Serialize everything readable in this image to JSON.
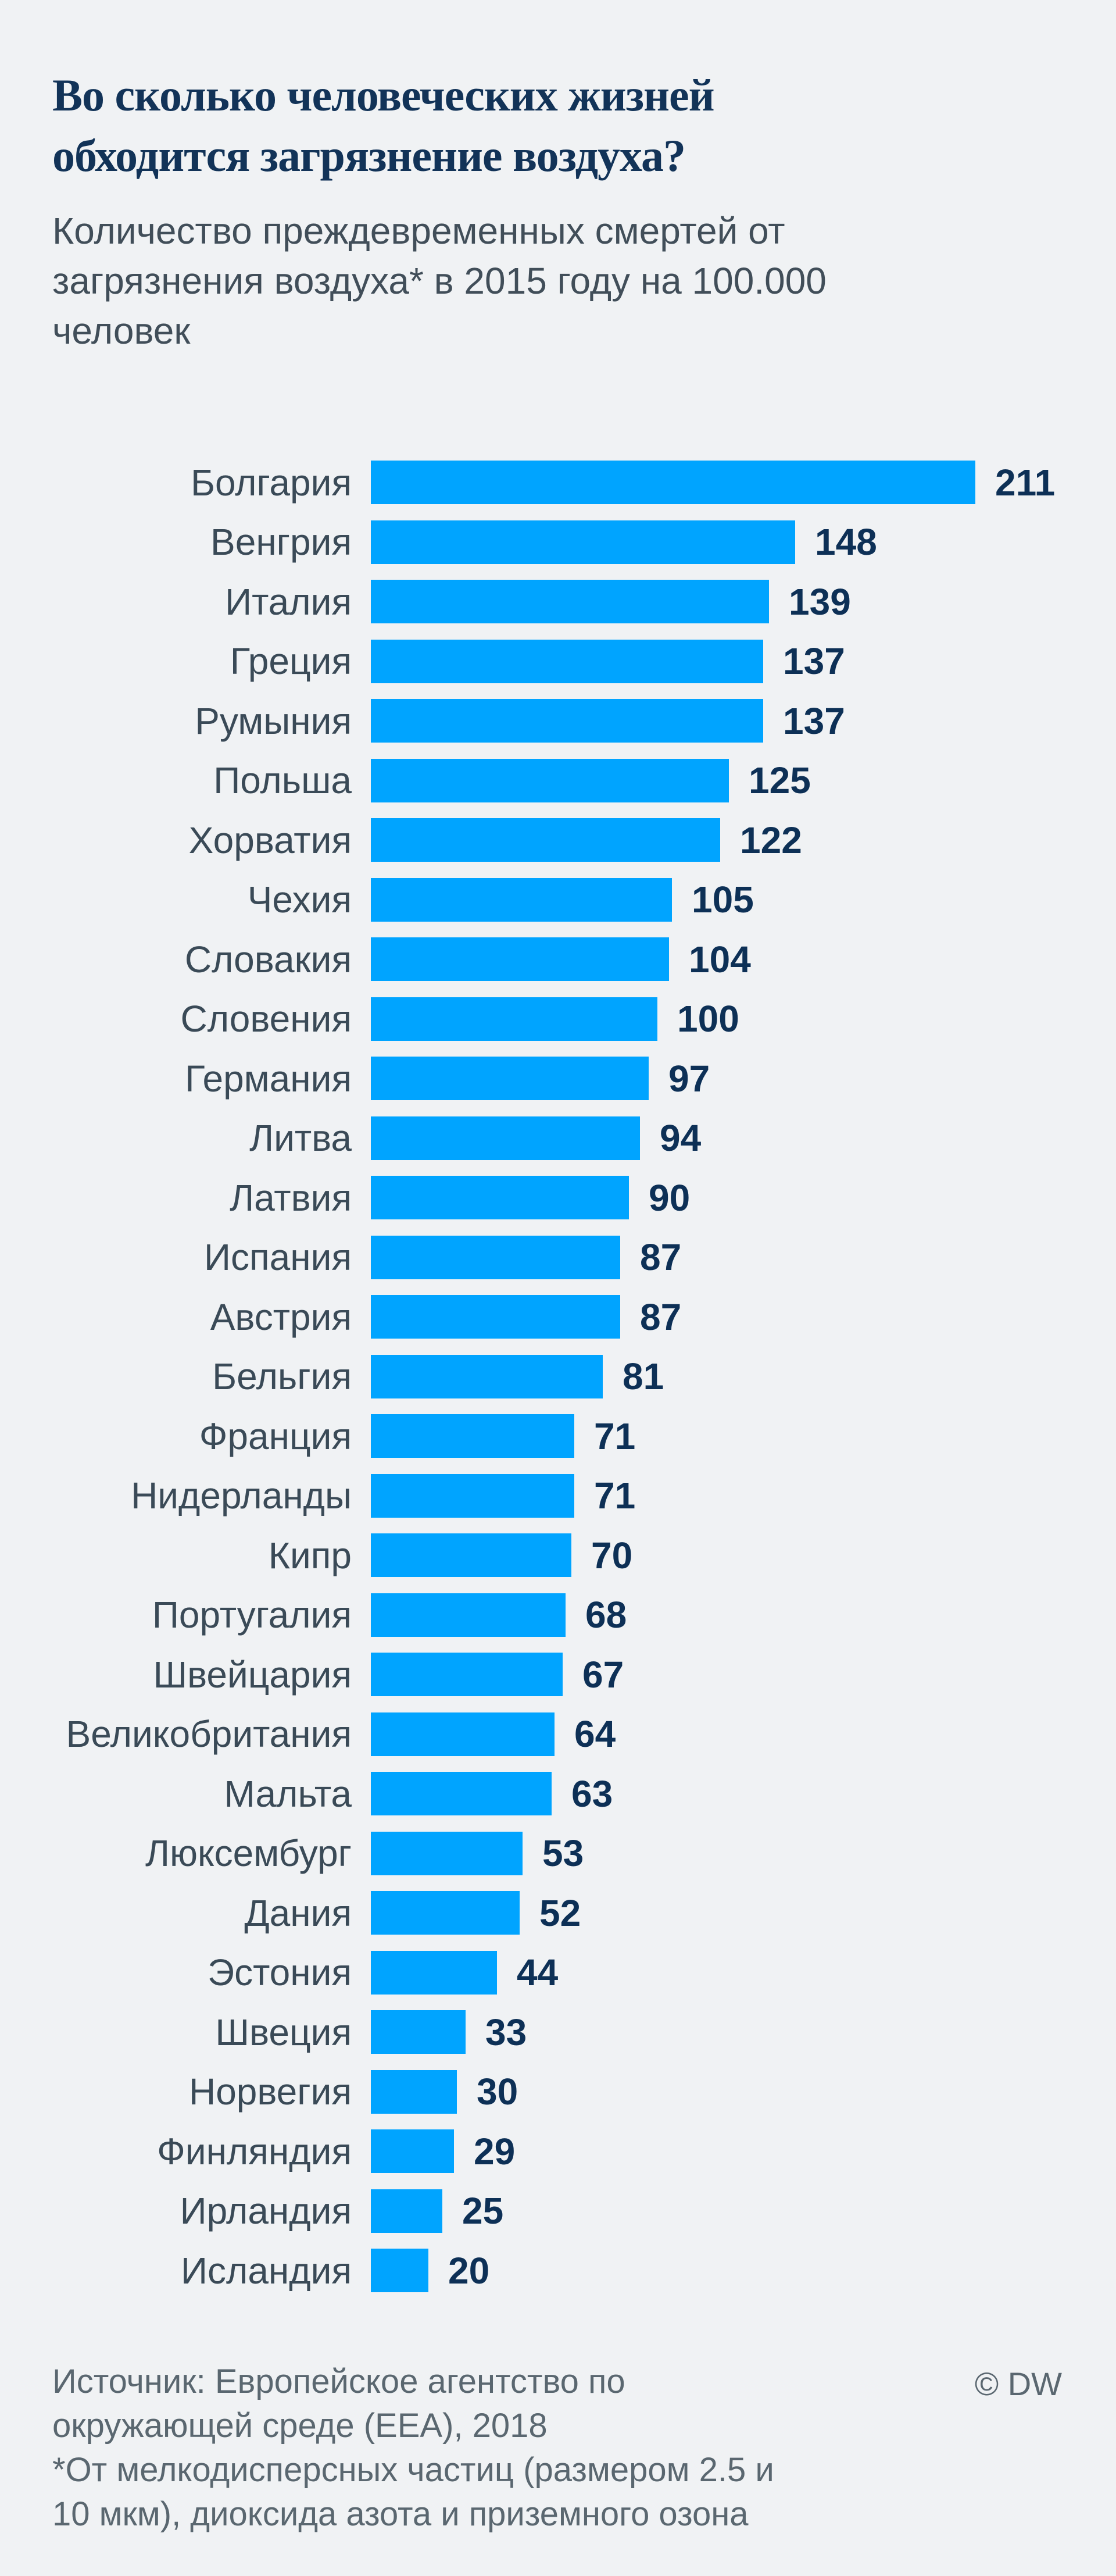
{
  "header": {
    "title": "Во сколько человеческих жизней обходится загрязнение воздуха?",
    "title_lines": [
      "Во сколько человеческих жизней",
      "обходится загрязнение воздуха?"
    ],
    "subtitle": "Количество преждевременных смертей от загрязнения воздуха* в 2015 году на 100.000 человек",
    "subtitle_lines": [
      "Количество преждевременных смертей от",
      "загрязнения воздуха* в 2015 году на 100.000",
      "человек"
    ]
  },
  "chart_data": {
    "type": "bar",
    "orientation": "horizontal",
    "title": "Во сколько человеческих жизней обходится загрязнение воздуха?",
    "subtitle": "Количество преждевременных смертей от загрязнения воздуха* в 2015 году на 100.000 человек",
    "categories": [
      "Болгария",
      "Венгрия",
      "Италия",
      "Греция",
      "Румыния",
      "Польша",
      "Хорватия",
      "Чехия",
      "Словакия",
      "Словения",
      "Германия",
      "Литва",
      "Латвия",
      "Испания",
      "Австрия",
      "Бельгия",
      "Франция",
      "Нидерланды",
      "Кипр",
      "Португалия",
      "Швейцария",
      "Великобритания",
      "Мальта",
      "Люксембург",
      "Дания",
      "Эстония",
      "Швеция",
      "Норвегия",
      "Финляндия",
      "Ирландия",
      "Исландия"
    ],
    "values": [
      211,
      148,
      139,
      137,
      137,
      125,
      122,
      105,
      104,
      100,
      97,
      94,
      90,
      87,
      87,
      81,
      71,
      71,
      70,
      68,
      67,
      64,
      63,
      53,
      52,
      44,
      33,
      30,
      29,
      25,
      20
    ],
    "value_labels_shown": true,
    "xlim": [
      0,
      220
    ],
    "grid": false,
    "legend": false,
    "bar_color": "#00a4ff"
  },
  "footer": {
    "source": "Источник: Европейское агентство по окружающей среде (EEA), 2018",
    "footnote": "*От мелкодисперсных частиц (размером 2.5 и 10 мкм), диоксида азота и приземного озона",
    "lines": [
      "Источник: Европейское агентство по",
      "окружающей среде (EEA), 2018",
      "*От мелкодисперсных частиц (размером 2.5 и",
      "10 мкм), диоксида азота и приземного озона"
    ],
    "credit": "© DW"
  },
  "colors": {
    "background": "#f0f2f4",
    "title": "#123358",
    "subtitle": "#414e59",
    "bar": "#00a4ff",
    "bar_label": "#3a4a57",
    "bar_value": "#0d3056",
    "footer": "#5a6770"
  }
}
